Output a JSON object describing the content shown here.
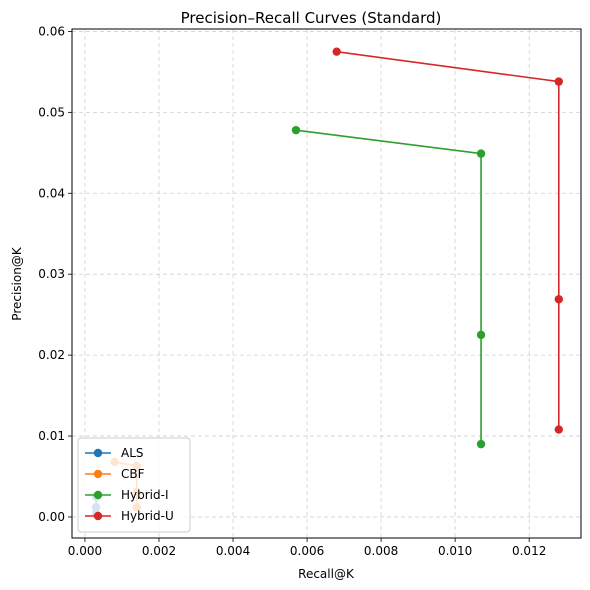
{
  "chart_data": {
    "type": "line",
    "title": "Precision–Recall Curves (Standard)",
    "xlabel": "Recall@K",
    "ylabel": "Precision@K",
    "xlim": [
      -0.00035,
      0.0134
    ],
    "ylim": [
      -0.0026,
      0.0603
    ],
    "xticks": [
      "0.000",
      "0.002",
      "0.004",
      "0.006",
      "0.008",
      "0.010",
      "0.012"
    ],
    "yticks": [
      "0.00",
      "0.01",
      "0.02",
      "0.03",
      "0.04",
      "0.05",
      "0.06"
    ],
    "grid": true,
    "legend_position": "lower-left",
    "series": [
      {
        "name": "ALS",
        "color": "#1f77b4",
        "points": [
          [
            0.0003,
            0.0025
          ],
          [
            0.0003,
            0.0012
          ],
          [
            0.0003,
            0.0004
          ]
        ]
      },
      {
        "name": "CBF",
        "color": "#ff7f0e",
        "points": [
          [
            0.0008,
            0.0068
          ],
          [
            0.0014,
            0.0063
          ],
          [
            0.0014,
            0.0031
          ],
          [
            0.0014,
            0.0012
          ]
        ]
      },
      {
        "name": "Hybrid-I",
        "color": "#2ca02c",
        "points": [
          [
            0.0057,
            0.0478
          ],
          [
            0.0107,
            0.0449
          ],
          [
            0.0107,
            0.0225
          ],
          [
            0.0107,
            0.009
          ]
        ]
      },
      {
        "name": "Hybrid-U",
        "color": "#d62728",
        "points": [
          [
            0.0068,
            0.0575
          ],
          [
            0.0128,
            0.0538
          ],
          [
            0.0128,
            0.0269
          ],
          [
            0.0128,
            0.0108
          ]
        ]
      }
    ]
  }
}
